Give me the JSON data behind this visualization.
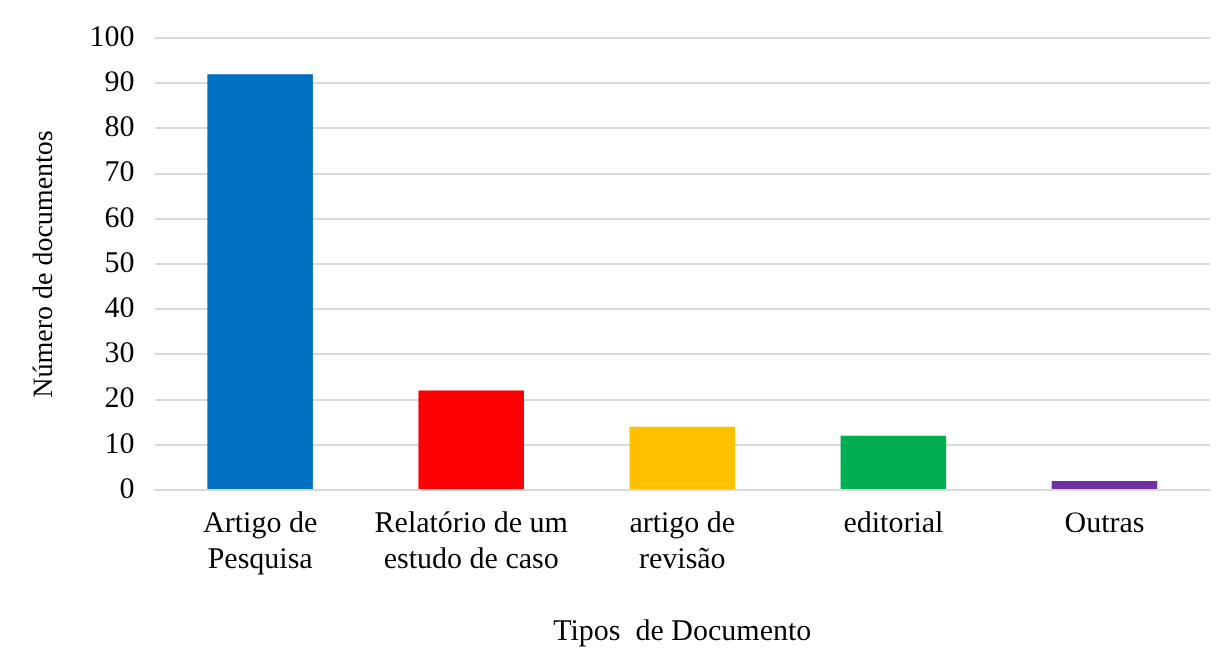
{
  "chart_data": {
    "type": "bar",
    "xlabel": "Tipos  de Documento",
    "ylabel": "Número de documentos",
    "categories": [
      "Artigo de\nPesquisa",
      "Relatório de um\nestudo de caso",
      "artigo de\nrevisão",
      "editorial",
      "Outras"
    ],
    "values": [
      92,
      22,
      14,
      12,
      2
    ],
    "colors": [
      "#0070c0",
      "#ff0000",
      "#ffc000",
      "#00b050",
      "#7030a0"
    ],
    "ylim": [
      0,
      100
    ],
    "yticks": [
      0,
      10,
      20,
      30,
      40,
      50,
      60,
      70,
      80,
      90,
      100
    ],
    "grid": "y",
    "legend": false
  }
}
